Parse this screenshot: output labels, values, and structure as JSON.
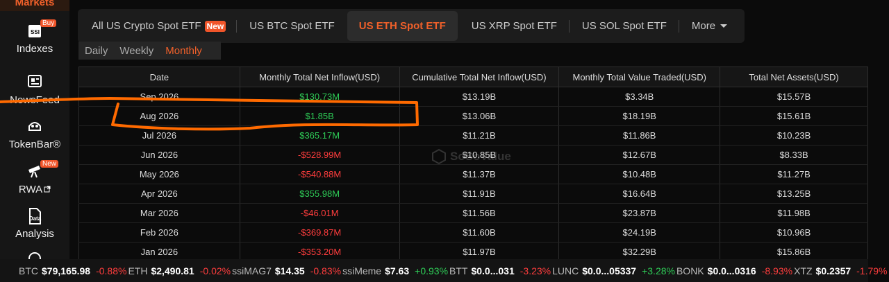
{
  "sidebar": {
    "title": "Markets",
    "items": [
      {
        "label": "Indexes",
        "badge": "Buy",
        "icon_text": "SSI"
      },
      {
        "label": "NewsFeed"
      },
      {
        "label": "TokenBar®"
      },
      {
        "label": "RWA",
        "badge": "New"
      },
      {
        "label": "Analysis",
        "icon_text": "Data"
      }
    ]
  },
  "tabs": [
    {
      "label": "All US Crypto Spot ETF",
      "badge": "New"
    },
    {
      "label": "US BTC Spot ETF"
    },
    {
      "label": "US ETH Spot ETF",
      "active": true
    },
    {
      "label": "US XRP Spot ETF"
    },
    {
      "label": "US SOL Spot ETF"
    },
    {
      "label": "More"
    }
  ],
  "subtabs": [
    {
      "label": "Daily"
    },
    {
      "label": "Weekly"
    },
    {
      "label": "Monthly",
      "active": true
    }
  ],
  "table": {
    "headers": [
      "Date",
      "Monthly Total Net Inflow(USD)",
      "Cumulative Total Net Inflow(USD)",
      "Monthly Total Value Traded(USD)",
      "Total Net Assets(USD)"
    ],
    "rows": [
      [
        "Sep 2026",
        "$130.73M",
        "$13.19B",
        "$3.34B",
        "$15.57B"
      ],
      [
        "Aug 2026",
        "$1.85B",
        "$13.06B",
        "$18.19B",
        "$15.61B"
      ],
      [
        "Jul 2026",
        "$365.17M",
        "$11.21B",
        "$11.86B",
        "$10.23B"
      ],
      [
        "Jun 2026",
        "-$528.99M",
        "$10.85B",
        "$12.67B",
        "$8.33B"
      ],
      [
        "May 2026",
        "-$540.88M",
        "$11.37B",
        "$10.48B",
        "$11.27B"
      ],
      [
        "Apr 2026",
        "$355.98M",
        "$11.91B",
        "$16.64B",
        "$13.25B"
      ],
      [
        "Mar 2026",
        "-$46.01M",
        "$11.56B",
        "$23.87B",
        "$11.98B"
      ],
      [
        "Feb 2026",
        "-$369.87M",
        "$11.60B",
        "$24.19B",
        "$10.96B"
      ],
      [
        "Jan 2026",
        "-$353.20M",
        "$11.97B",
        "$32.29B",
        "$15.86B"
      ]
    ]
  },
  "watermark": "SoSoValue",
  "ticker": [
    {
      "symbol": "BTC",
      "price": "$79,165.98",
      "change": "-0.88%"
    },
    {
      "symbol": "ETH",
      "price": "$2,490.81",
      "change": "-0.02%"
    },
    {
      "symbol": "ssiMAG7",
      "price": "$14.35",
      "change": "-0.83%"
    },
    {
      "symbol": "ssiMeme",
      "price": "$7.63",
      "change": "+0.93%"
    },
    {
      "symbol": "BTT",
      "price": "$0.0...031",
      "change": "-3.23%"
    },
    {
      "symbol": "LUNC",
      "price": "$0.0...05337",
      "change": "+3.28%"
    },
    {
      "symbol": "BONK",
      "price": "$0.0...0316",
      "change": "-8.93%"
    },
    {
      "symbol": "XTZ",
      "price": "$0.2357",
      "change": "-1.79%"
    }
  ]
}
